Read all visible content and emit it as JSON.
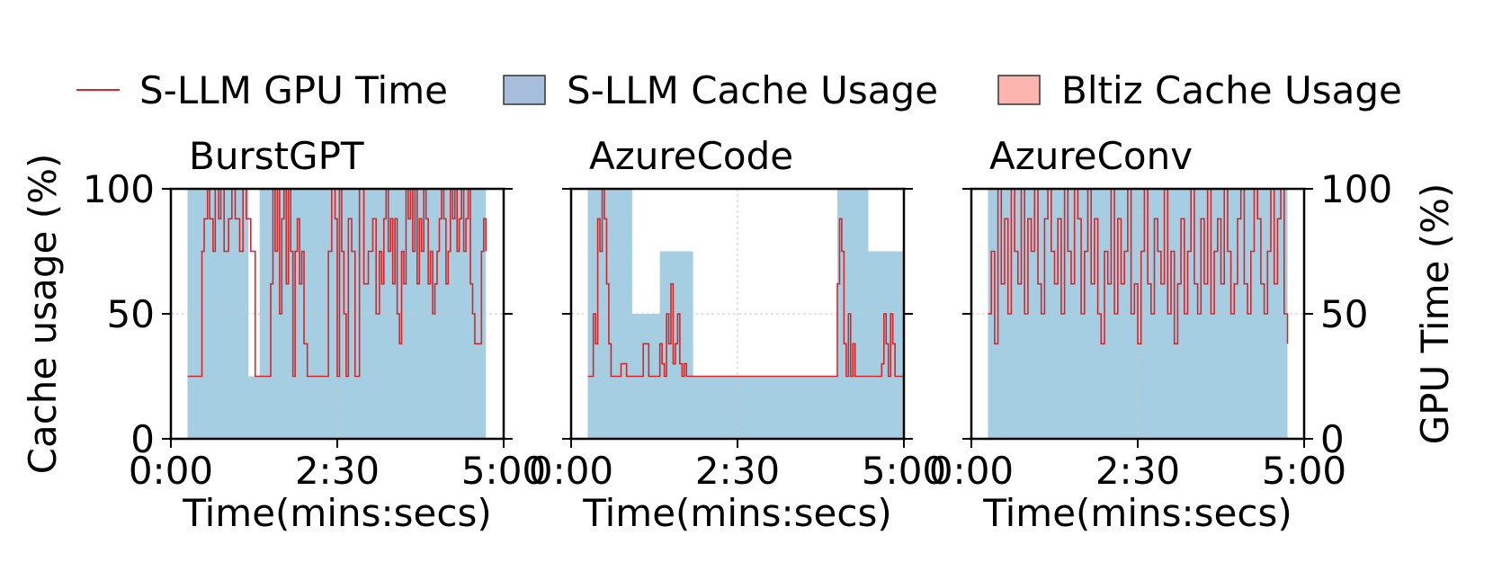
{
  "legend": {
    "placement": "top-center",
    "items": [
      {
        "label": "S-LLM GPU Time",
        "kind": "line",
        "color": "#d62728"
      },
      {
        "label": "S-LLM Cache Usage",
        "kind": "patch",
        "color": "#a6bddb"
      },
      {
        "label": "Bltiz Cache Usage",
        "kind": "patch",
        "color": "#fbb4ae"
      }
    ]
  },
  "colors": {
    "cache_fill": "#a6cee3",
    "gpu_line": "#d62728",
    "grid": "#c8c8c8"
  },
  "chart_data": [
    {
      "type": "area",
      "title": "BurstGPT",
      "xlabel": "Time(mins:secs)",
      "ylabel_left": "Cache usage (%)",
      "ylabel_right": "",
      "xlim": [
        0,
        300
      ],
      "ylim": [
        0,
        100
      ],
      "xticks": [
        0,
        150,
        300
      ],
      "xtick_labels": [
        "0:00",
        "2:30",
        "5:00"
      ],
      "yticks": [
        0,
        50,
        100
      ],
      "ytick_labels_left": [
        "0",
        "50",
        "100"
      ],
      "ytick_labels_right": [],
      "grid": true,
      "series": [
        {
          "role": "cache",
          "x": [
            0,
            15,
            15,
            70,
            70,
            80,
            80,
            284,
            284,
            300
          ],
          "y": [
            0,
            0,
            100,
            100,
            25,
            25,
            100,
            100,
            0,
            0
          ]
        },
        {
          "role": "gpu_time",
          "x": [
            15,
            25,
            28,
            30,
            33,
            35,
            38,
            40,
            43,
            45,
            48,
            52,
            55,
            58,
            62,
            65,
            68,
            72,
            76,
            80,
            84,
            86,
            88,
            90,
            92,
            94,
            96,
            98,
            100,
            102,
            104,
            106,
            108,
            110,
            112,
            114,
            116,
            118,
            120,
            123,
            126,
            130,
            134,
            138,
            142,
            145,
            148,
            150,
            152,
            154,
            156,
            158,
            160,
            163,
            166,
            170,
            174,
            178,
            182,
            185,
            188,
            190,
            192,
            194,
            196,
            198,
            200,
            202,
            204,
            206,
            208,
            210,
            212,
            214,
            216,
            218,
            220,
            222,
            224,
            226,
            228,
            230,
            232,
            234,
            236,
            238,
            240,
            242,
            244,
            246,
            248,
            250,
            252,
            254,
            256,
            258,
            260,
            262,
            264,
            266,
            268,
            270,
            272,
            274,
            276,
            278,
            280,
            282,
            284
          ],
          "y": [
            25,
            25,
            75,
            88,
            100,
            88,
            75,
            100,
            88,
            100,
            75,
            88,
            100,
            88,
            75,
            100,
            88,
            75,
            25,
            25,
            25,
            25,
            25,
            62,
            100,
            75,
            100,
            50,
            88,
            100,
            62,
            100,
            75,
            25,
            75,
            88,
            62,
            75,
            38,
            25,
            25,
            25,
            25,
            25,
            75,
            100,
            88,
            25,
            100,
            75,
            50,
            25,
            88,
            75,
            25,
            100,
            62,
            75,
            88,
            50,
            75,
            62,
            88,
            100,
            75,
            88,
            62,
            88,
            50,
            38,
            75,
            62,
            100,
            88,
            100,
            75,
            100,
            62,
            88,
            75,
            100,
            88,
            62,
            75,
            50,
            62,
            75,
            88,
            100,
            88,
            62,
            75,
            100,
            88,
            100,
            75,
            88,
            100,
            75,
            88,
            100,
            62,
            50,
            38,
            38,
            38,
            75,
            88,
            75
          ]
        }
      ]
    },
    {
      "type": "area",
      "title": "AzureCode",
      "xlabel": "Time(mins:secs)",
      "ylabel_left": "",
      "ylabel_right": "",
      "xlim": [
        0,
        300
      ],
      "ylim": [
        0,
        100
      ],
      "xticks": [
        0,
        150,
        300
      ],
      "xtick_labels": [
        "0:00",
        "2:30",
        "5:00"
      ],
      "yticks": [
        0,
        50,
        100
      ],
      "ytick_labels_left": [],
      "ytick_labels_right": [],
      "grid": true,
      "series": [
        {
          "role": "cache",
          "x": [
            0,
            15,
            15,
            55,
            55,
            80,
            80,
            110,
            110,
            240,
            240,
            268,
            268,
            300,
            300
          ],
          "y": [
            0,
            0,
            100,
            100,
            50,
            50,
            75,
            75,
            25,
            25,
            100,
            100,
            75,
            75,
            0
          ]
        },
        {
          "role": "gpu_time",
          "x": [
            15,
            20,
            22,
            24,
            26,
            28,
            30,
            32,
            34,
            36,
            38,
            40,
            45,
            50,
            55,
            60,
            65,
            70,
            75,
            80,
            82,
            84,
            86,
            88,
            90,
            92,
            94,
            96,
            98,
            100,
            102,
            104,
            106,
            110,
            130,
            150,
            170,
            190,
            210,
            230,
            238,
            240,
            242,
            244,
            246,
            248,
            250,
            252,
            254,
            256,
            258,
            260,
            262,
            264,
            266,
            270,
            275,
            280,
            282,
            284,
            286,
            288,
            290,
            292,
            295,
            300
          ],
          "y": [
            25,
            50,
            38,
            88,
            75,
            100,
            88,
            62,
            38,
            25,
            25,
            25,
            30,
            25,
            25,
            25,
            38,
            25,
            25,
            38,
            30,
            25,
            50,
            38,
            62,
            30,
            38,
            50,
            30,
            25,
            30,
            25,
            25,
            25,
            25,
            25,
            25,
            25,
            25,
            25,
            25,
            62,
            88,
            75,
            38,
            25,
            50,
            25,
            38,
            25,
            25,
            25,
            25,
            25,
            25,
            25,
            25,
            30,
            50,
            38,
            25,
            50,
            38,
            25,
            25,
            25
          ]
        }
      ]
    },
    {
      "type": "area",
      "title": "AzureConv",
      "xlabel": "Time(mins:secs)",
      "ylabel_left": "",
      "ylabel_right": "GPU Time (%)",
      "xlim": [
        0,
        300
      ],
      "ylim": [
        0,
        100
      ],
      "xticks": [
        0,
        150,
        300
      ],
      "xtick_labels": [
        "0:00",
        "2:30",
        "5:00"
      ],
      "yticks": [
        0,
        50,
        100
      ],
      "ytick_labels_left": [],
      "ytick_labels_right": [
        "0",
        "50",
        "100"
      ],
      "grid": true,
      "series": [
        {
          "role": "cache",
          "x": [
            0,
            15,
            15,
            285,
            285,
            300
          ],
          "y": [
            0,
            0,
            100,
            100,
            0,
            0
          ]
        },
        {
          "role": "gpu_time",
          "x": [
            15,
            18,
            21,
            24,
            27,
            30,
            33,
            36,
            39,
            42,
            45,
            48,
            51,
            54,
            57,
            60,
            63,
            66,
            69,
            72,
            75,
            78,
            81,
            84,
            87,
            90,
            93,
            96,
            99,
            102,
            105,
            108,
            111,
            114,
            117,
            120,
            123,
            126,
            129,
            132,
            135,
            138,
            141,
            144,
            147,
            150,
            153,
            156,
            159,
            162,
            165,
            168,
            171,
            174,
            177,
            180,
            183,
            186,
            189,
            192,
            195,
            198,
            201,
            204,
            207,
            210,
            213,
            216,
            219,
            222,
            225,
            228,
            231,
            234,
            237,
            240,
            243,
            246,
            249,
            252,
            255,
            258,
            261,
            264,
            267,
            270,
            273,
            276,
            279,
            282,
            285
          ],
          "y": [
            50,
            75,
            38,
            100,
            62,
            88,
            50,
            100,
            75,
            62,
            100,
            50,
            88,
            75,
            100,
            62,
            50,
            88,
            100,
            75,
            62,
            88,
            50,
            100,
            75,
            62,
            100,
            88,
            50,
            75,
            100,
            62,
            88,
            50,
            38,
            75,
            62,
            100,
            50,
            88,
            62,
            75,
            100,
            50,
            62,
            38,
            75,
            100,
            62,
            50,
            88,
            75,
            62,
            100,
            50,
            75,
            38,
            62,
            88,
            50,
            75,
            100,
            62,
            50,
            88,
            62,
            100,
            50,
            75,
            88,
            62,
            100,
            75,
            50,
            62,
            88,
            100,
            62,
            50,
            75,
            100,
            88,
            62,
            50,
            75,
            100,
            62,
            88,
            100,
            50,
            38
          ]
        }
      ]
    }
  ]
}
